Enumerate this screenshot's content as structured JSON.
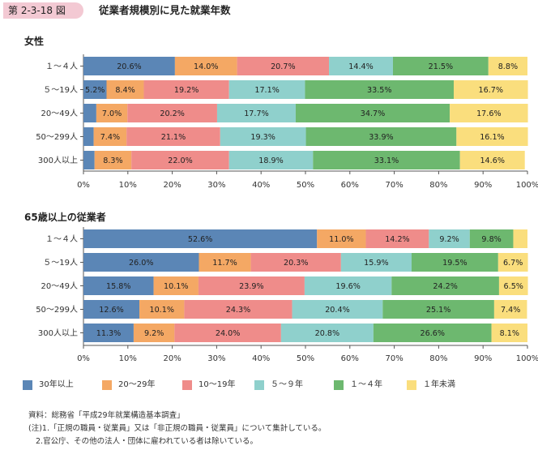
{
  "header": {
    "badge": "第 2-3-18 図",
    "title": "従業者規模別に見た就業年数"
  },
  "colors": [
    "#5b86b6",
    "#f4a864",
    "#ef8c8a",
    "#8fd0cc",
    "#6db86f",
    "#fade7d"
  ],
  "legend": [
    "30年以上",
    "20〜29年",
    "10〜19年",
    "５〜９年",
    "１〜４年",
    "１年未満"
  ],
  "notes": [
    "資料：総務省「平成29年就業構造基本調査」",
    "(注)1.「正規の職員・従業員」又は「非正規の職員・従業員」について集計している。",
    "2.官公庁、その他の法人・団体に雇われている者は除いている。"
  ],
  "chart_data": [
    {
      "type": "bar",
      "orientation": "horizontal",
      "stacked": true,
      "title": "女性",
      "categories": [
        "１〜４人",
        "５〜19人",
        "20〜49人",
        "50〜299人",
        "300人以上"
      ],
      "xticks": [
        "0%",
        "10%",
        "20%",
        "30%",
        "40%",
        "50%",
        "60%",
        "70%",
        "80%",
        "90%",
        "100%"
      ],
      "xlim": [
        0,
        100
      ],
      "series": [
        {
          "name": "30年以上",
          "values": [
            20.6,
            5.2,
            2.9,
            2.3,
            2.5
          ],
          "labels": [
            "20.6%",
            "5.2%",
            "",
            "",
            ""
          ]
        },
        {
          "name": "20〜29年",
          "values": [
            14.0,
            8.4,
            7.0,
            7.4,
            8.3
          ],
          "labels": [
            "14.0%",
            "8.4%",
            "7.0%",
            "7.4%",
            "8.3%"
          ]
        },
        {
          "name": "10〜19年",
          "values": [
            20.7,
            19.2,
            20.2,
            21.1,
            22.0
          ],
          "labels": [
            "20.7%",
            "19.2%",
            "20.2%",
            "21.1%",
            "22.0%"
          ]
        },
        {
          "name": "５〜９年",
          "values": [
            14.4,
            17.1,
            17.7,
            19.3,
            18.9
          ],
          "labels": [
            "14.4%",
            "17.1%",
            "17.7%",
            "19.3%",
            "18.9%"
          ]
        },
        {
          "name": "１〜４年",
          "values": [
            21.5,
            33.5,
            34.7,
            33.9,
            33.1
          ],
          "labels": [
            "21.5%",
            "33.5%",
            "34.7%",
            "33.9%",
            "33.1%"
          ]
        },
        {
          "name": "１年未満",
          "values": [
            8.8,
            16.7,
            17.6,
            16.1,
            14.6
          ],
          "labels": [
            "8.8%",
            "16.7%",
            "17.6%",
            "16.1%",
            "14.6%"
          ]
        }
      ]
    },
    {
      "type": "bar",
      "orientation": "horizontal",
      "stacked": true,
      "title": "65歳以上の従業者",
      "categories": [
        "１〜４人",
        "５〜19人",
        "20〜49人",
        "50〜299人",
        "300人以上"
      ],
      "xticks": [
        "0%",
        "10%",
        "20%",
        "30%",
        "40%",
        "50%",
        "60%",
        "70%",
        "80%",
        "90%",
        "100%"
      ],
      "xlim": [
        0,
        100
      ],
      "series": [
        {
          "name": "30年以上",
          "values": [
            52.6,
            26.0,
            15.8,
            12.6,
            11.3
          ],
          "labels": [
            "52.6%",
            "26.0%",
            "15.8%",
            "12.6%",
            "11.3%"
          ]
        },
        {
          "name": "20〜29年",
          "values": [
            11.0,
            11.7,
            10.1,
            10.1,
            9.2
          ],
          "labels": [
            "11.0%",
            "11.7%",
            "10.1%",
            "10.1%",
            "9.2%"
          ]
        },
        {
          "name": "10〜19年",
          "values": [
            14.2,
            20.3,
            23.9,
            24.3,
            24.0
          ],
          "labels": [
            "14.2%",
            "20.3%",
            "23.9%",
            "24.3%",
            "24.0%"
          ]
        },
        {
          "name": "５〜９年",
          "values": [
            9.2,
            15.9,
            19.6,
            20.4,
            20.8
          ],
          "labels": [
            "9.2%",
            "15.9%",
            "19.6%",
            "20.4%",
            "20.8%"
          ]
        },
        {
          "name": "１〜４年",
          "values": [
            9.8,
            19.5,
            24.2,
            25.1,
            26.6
          ],
          "labels": [
            "9.8%",
            "19.5%",
            "24.2%",
            "25.1%",
            "26.6%"
          ]
        },
        {
          "name": "１年未満",
          "values": [
            3.2,
            6.7,
            6.5,
            7.4,
            8.1
          ],
          "labels": [
            "",
            "6.7%",
            "6.5%",
            "7.4%",
            "8.1%"
          ]
        }
      ]
    }
  ]
}
